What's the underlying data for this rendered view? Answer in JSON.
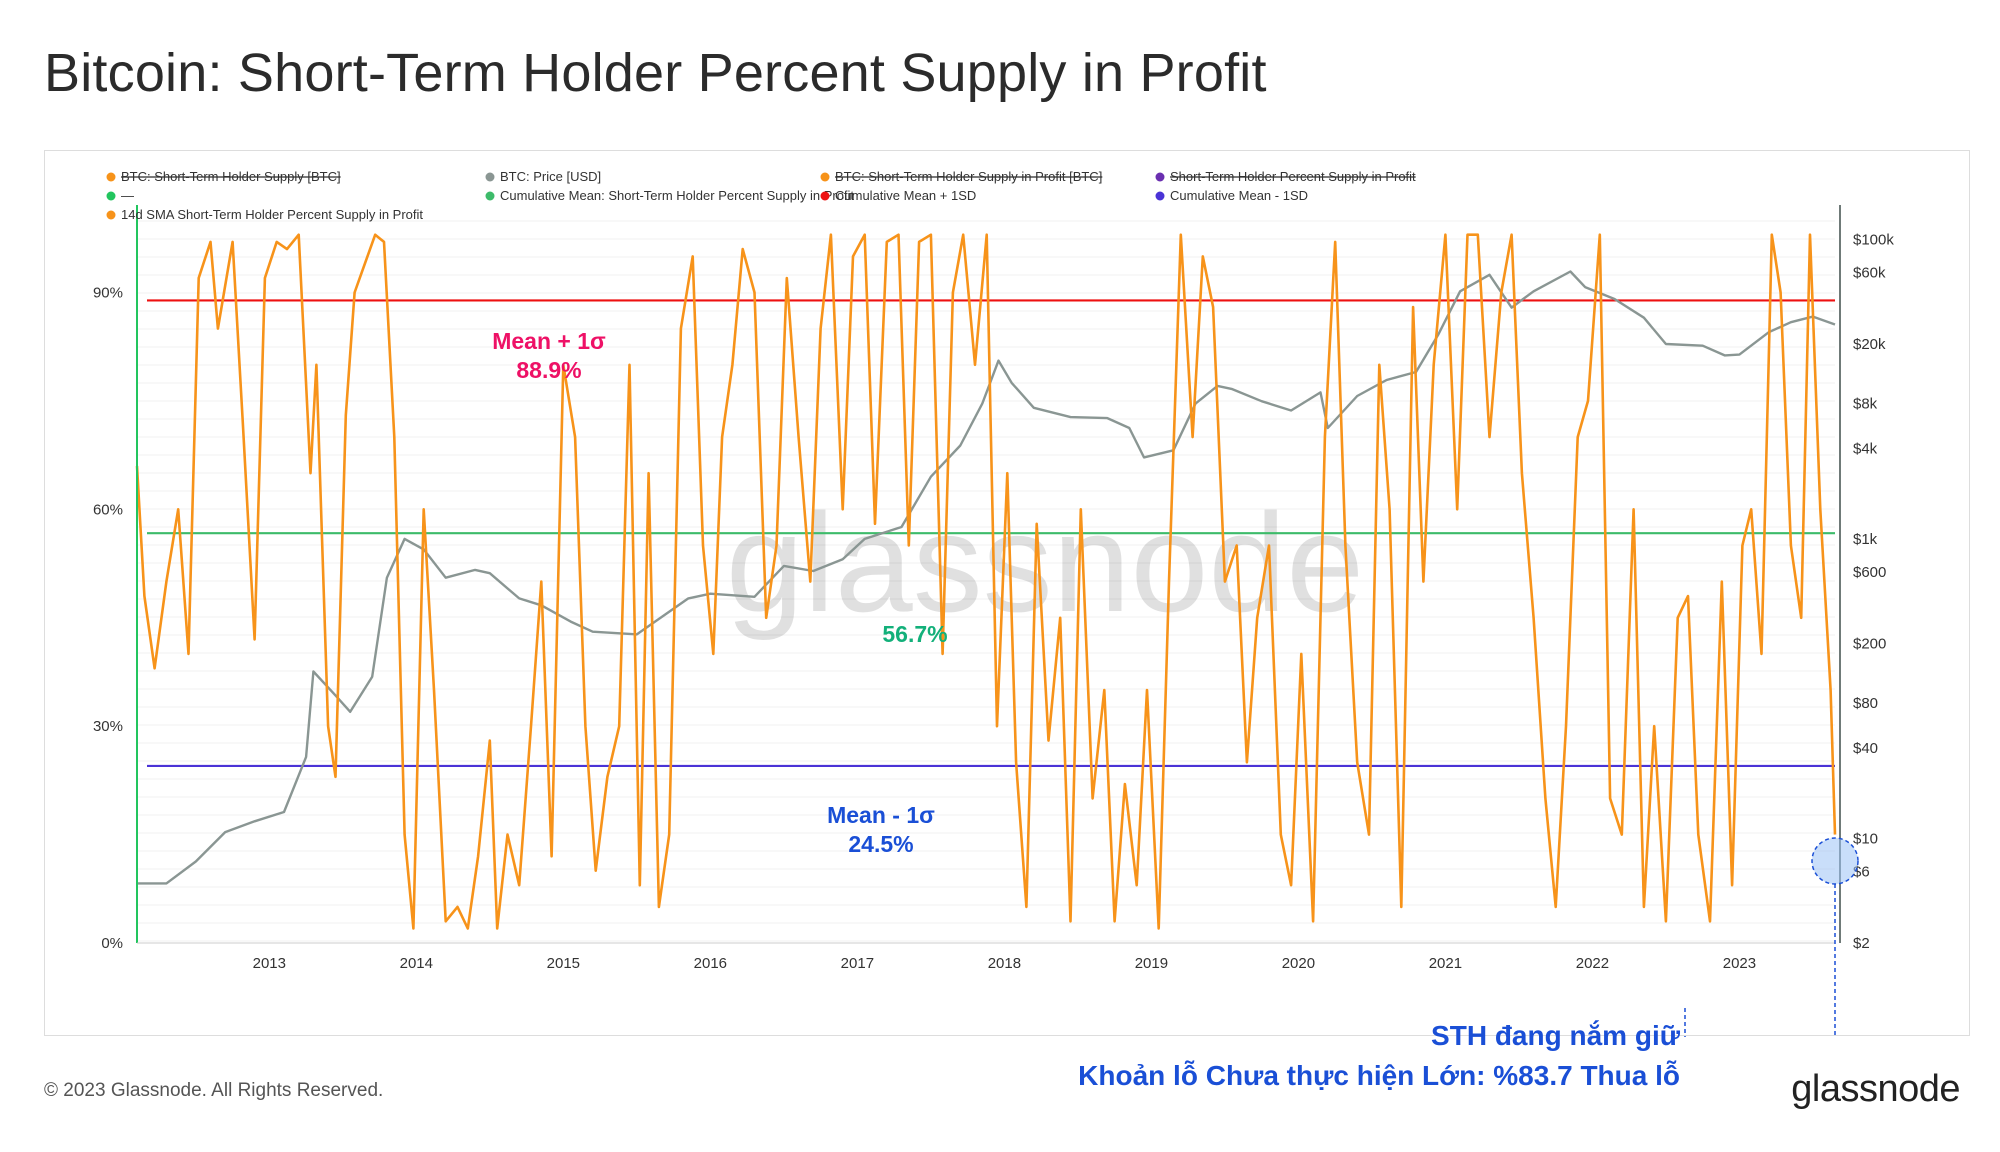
{
  "title": "Bitcoin: Short-Term Holder Percent Supply in Profit",
  "legend": [
    {
      "label": "BTC: Short-Term Holder Supply [BTC]",
      "color": "#f7931a",
      "struck": true
    },
    {
      "label": "BTC: Price [USD]",
      "color": "#8a9693",
      "struck": false
    },
    {
      "label": "BTC: Short-Term Holder Supply in Profit [BTC]",
      "color": "#f7931a",
      "struck": true
    },
    {
      "label": "Short-Term Holder Percent Supply in Profit",
      "color": "#6a2fb0",
      "struck": true
    },
    {
      "label": "—",
      "color": "#22c55e",
      "struck": false
    },
    {
      "label": "Cumulative Mean: Short-Term Holder Percent Supply in Profit",
      "color": "#3dbb6a",
      "struck": false
    },
    {
      "label": "Cumulative Mean + 1SD",
      "color": "#ee1111",
      "struck": false
    },
    {
      "label": "Cumulative Mean - 1SD",
      "color": "#4a33d6",
      "struck": false
    },
    {
      "label": "14d SMA Short-Term Holder Percent Supply in Profit",
      "color": "#f7931a",
      "struck": false
    }
  ],
  "annotations": {
    "mean_plus": {
      "title": "Mean + 1σ",
      "value": "88.9%",
      "color": "#ee1166"
    },
    "mean": {
      "value": "56.7%",
      "color": "#13b07a"
    },
    "mean_minus": {
      "title": "Mean - 1σ",
      "value": "24.5%",
      "color": "#1a4fd6"
    }
  },
  "watermark": "glassnode",
  "callout": {
    "line1": "STH đang nắm giữ",
    "line2": "Khoản lỗ Chưa thực hiện Lớn: %83.7 Thua lỗ",
    "color": "#1a4fd6"
  },
  "footer": {
    "copyright": "© 2023 Glassnode. All Rights Reserved.",
    "logo": "glassnode"
  },
  "colors": {
    "sma": "#f7931a",
    "price": "#8a9693",
    "mean_plus": "#ee1111",
    "mean": "#3dbb6a",
    "mean_minus": "#4a33d6",
    "left_axis_line": "#22c55e"
  },
  "chart_data": {
    "type": "line",
    "title": "Bitcoin: Short-Term Holder Percent Supply in Profit",
    "xlabel": "",
    "ylabel": "",
    "x_range": [
      2012.1,
      2023.65
    ],
    "x_ticks": [
      {
        "value": 2013,
        "label": "2013"
      },
      {
        "value": 2014,
        "label": "2014"
      },
      {
        "value": 2015,
        "label": "2015"
      },
      {
        "value": 2016,
        "label": "2016"
      },
      {
        "value": 2017,
        "label": "2017"
      },
      {
        "value": 2018,
        "label": "2018"
      },
      {
        "value": 2019,
        "label": "2019"
      },
      {
        "value": 2020,
        "label": "2020"
      },
      {
        "value": 2021,
        "label": "2021"
      },
      {
        "value": 2022,
        "label": "2022"
      },
      {
        "value": 2023,
        "label": "2023"
      }
    ],
    "y_left": {
      "range": [
        0,
        101
      ],
      "ticks": [
        {
          "value": 0,
          "label": "0%"
        },
        {
          "value": 30,
          "label": "30%"
        },
        {
          "value": 60,
          "label": "60%"
        },
        {
          "value": 90,
          "label": "90%"
        }
      ]
    },
    "y_right": {
      "scale": "log",
      "range": [
        2,
        150000
      ],
      "ticks": [
        {
          "value": 2,
          "label": "$2"
        },
        {
          "value": 6,
          "label": "$6"
        },
        {
          "value": 10,
          "label": "$10"
        },
        {
          "value": 40,
          "label": "$40"
        },
        {
          "value": 80,
          "label": "$80"
        },
        {
          "value": 200,
          "label": "$200"
        },
        {
          "value": 600,
          "label": "$600"
        },
        {
          "value": 1000,
          "label": "$1k"
        },
        {
          "value": 4000,
          "label": "$4k"
        },
        {
          "value": 8000,
          "label": "$8k"
        },
        {
          "value": 20000,
          "label": "$20k"
        },
        {
          "value": 60000,
          "label": "$60k"
        },
        {
          "value": 100000,
          "label": "$100k"
        }
      ]
    },
    "reference_lines": [
      {
        "name": "Cumulative Mean + 1SD",
        "value": 88.9
      },
      {
        "name": "Cumulative Mean",
        "value": 56.7
      },
      {
        "name": "Cumulative Mean - 1SD",
        "value": 24.5
      }
    ],
    "series": [
      {
        "name": "14d SMA Short-Term Holder Percent Supply in Profit",
        "axis": "left",
        "x": [
          2012.1,
          2012.15,
          2012.22,
          2012.3,
          2012.38,
          2012.45,
          2012.52,
          2012.6,
          2012.65,
          2012.75,
          2012.82,
          2012.9,
          2012.97,
          2013.05,
          2013.12,
          2013.2,
          2013.28,
          2013.32,
          2013.4,
          2013.45,
          2013.52,
          2013.58,
          2013.65,
          2013.72,
          2013.78,
          2013.85,
          2013.92,
          2013.98,
          2014.05,
          2014.12,
          2014.2,
          2014.28,
          2014.35,
          2014.42,
          2014.5,
          2014.55,
          2014.62,
          2014.7,
          2014.78,
          2014.85,
          2014.92,
          2015.0,
          2015.08,
          2015.15,
          2015.22,
          2015.3,
          2015.38,
          2015.45,
          2015.52,
          2015.58,
          2015.65,
          2015.72,
          2015.8,
          2015.88,
          2015.95,
          2016.02,
          2016.08,
          2016.15,
          2016.22,
          2016.3,
          2016.38,
          2016.45,
          2016.52,
          2016.6,
          2016.68,
          2016.75,
          2016.82,
          2016.9,
          2016.97,
          2017.05,
          2017.12,
          2017.2,
          2017.28,
          2017.35,
          2017.42,
          2017.5,
          2017.58,
          2017.65,
          2017.72,
          2017.8,
          2017.88,
          2017.95,
          2018.02,
          2018.08,
          2018.15,
          2018.22,
          2018.3,
          2018.38,
          2018.45,
          2018.52,
          2018.6,
          2018.68,
          2018.75,
          2018.82,
          2018.9,
          2018.97,
          2019.05,
          2019.12,
          2019.2,
          2019.28,
          2019.35,
          2019.42,
          2019.5,
          2019.58,
          2019.65,
          2019.72,
          2019.8,
          2019.88,
          2019.95,
          2020.02,
          2020.1,
          2020.18,
          2020.25,
          2020.32,
          2020.4,
          2020.48,
          2020.55,
          2020.62,
          2020.7,
          2020.78,
          2020.85,
          2020.92,
          2021.0,
          2021.08,
          2021.15,
          2021.22,
          2021.3,
          2021.38,
          2021.45,
          2021.52,
          2021.6,
          2021.68,
          2021.75,
          2021.82,
          2021.9,
          2021.97,
          2022.05,
          2022.12,
          2022.2,
          2022.28,
          2022.35,
          2022.42,
          2022.5,
          2022.58,
          2022.65,
          2022.72,
          2022.8,
          2022.88,
          2022.95,
          2023.02,
          2023.08,
          2023.15,
          2023.22,
          2023.28,
          2023.35,
          2023.42,
          2023.48,
          2023.55,
          2023.62,
          2023.65
        ],
        "values": [
          66,
          48,
          38,
          50,
          60,
          40,
          92,
          97,
          85,
          97,
          72,
          42,
          92,
          97,
          96,
          98,
          65,
          80,
          30,
          23,
          73,
          90,
          94,
          98,
          97,
          70,
          15,
          2,
          60,
          35,
          3,
          5,
          2,
          12,
          28,
          2,
          15,
          8,
          30,
          50,
          12,
          80,
          70,
          30,
          10,
          23,
          30,
          80,
          8,
          65,
          5,
          15,
          85,
          95,
          55,
          40,
          70,
          80,
          96,
          90,
          45,
          55,
          92,
          70,
          50,
          85,
          98,
          60,
          95,
          98,
          58,
          97,
          98,
          55,
          97,
          98,
          40,
          90,
          98,
          80,
          98,
          30,
          65,
          25,
          5,
          58,
          28,
          45,
          3,
          60,
          20,
          35,
          3,
          22,
          8,
          35,
          2,
          50,
          98,
          70,
          95,
          88,
          50,
          55,
          25,
          45,
          55,
          15,
          8,
          40,
          3,
          70,
          97,
          55,
          25,
          15,
          80,
          60,
          5,
          88,
          50,
          80,
          98,
          60,
          98,
          98,
          70,
          90,
          98,
          65,
          45,
          20,
          5,
          30,
          70,
          75,
          98,
          20,
          15,
          60,
          5,
          30,
          3,
          45,
          48,
          15,
          3,
          50,
          8,
          55,
          60,
          40,
          98,
          90,
          55,
          45,
          98,
          60,
          35,
          15
        ],
        "color": "#f7931a"
      },
      {
        "name": "BTC: Price [USD]",
        "axis": "right",
        "x": [
          2012.1,
          2012.3,
          2012.5,
          2012.7,
          2012.9,
          2013.1,
          2013.25,
          2013.3,
          2013.45,
          2013.55,
          2013.7,
          2013.8,
          2013.92,
          2014.05,
          2014.2,
          2014.4,
          2014.5,
          2014.7,
          2014.85,
          2015.05,
          2015.2,
          2015.5,
          2015.85,
          2016.0,
          2016.3,
          2016.5,
          2016.7,
          2016.9,
          2017.05,
          2017.3,
          2017.5,
          2017.7,
          2017.85,
          2017.96,
          2018.05,
          2018.2,
          2018.45,
          2018.7,
          2018.85,
          2018.95,
          2019.15,
          2019.3,
          2019.45,
          2019.55,
          2019.75,
          2019.95,
          2020.15,
          2020.2,
          2020.4,
          2020.6,
          2020.8,
          2020.95,
          2021.1,
          2021.3,
          2021.45,
          2021.6,
          2021.85,
          2021.95,
          2022.15,
          2022.35,
          2022.5,
          2022.75,
          2022.9,
          2023.0,
          2023.2,
          2023.35,
          2023.5,
          2023.65
        ],
        "values": [
          5,
          5,
          7,
          11,
          13,
          15,
          35,
          130,
          90,
          70,
          120,
          550,
          1000,
          850,
          550,
          620,
          590,
          400,
          360,
          280,
          240,
          230,
          400,
          430,
          410,
          660,
          610,
          730,
          1000,
          1200,
          2600,
          4200,
          8000,
          15500,
          11000,
          7500,
          6500,
          6400,
          5500,
          3500,
          3900,
          8000,
          10500,
          10000,
          8300,
          7200,
          9500,
          5500,
          9000,
          11500,
          13000,
          23000,
          45000,
          58000,
          35000,
          45000,
          61000,
          48000,
          40000,
          30000,
          20000,
          19500,
          16800,
          17000,
          24000,
          28000,
          30500,
          27000
        ],
        "color": "#8a9693"
      }
    ]
  }
}
